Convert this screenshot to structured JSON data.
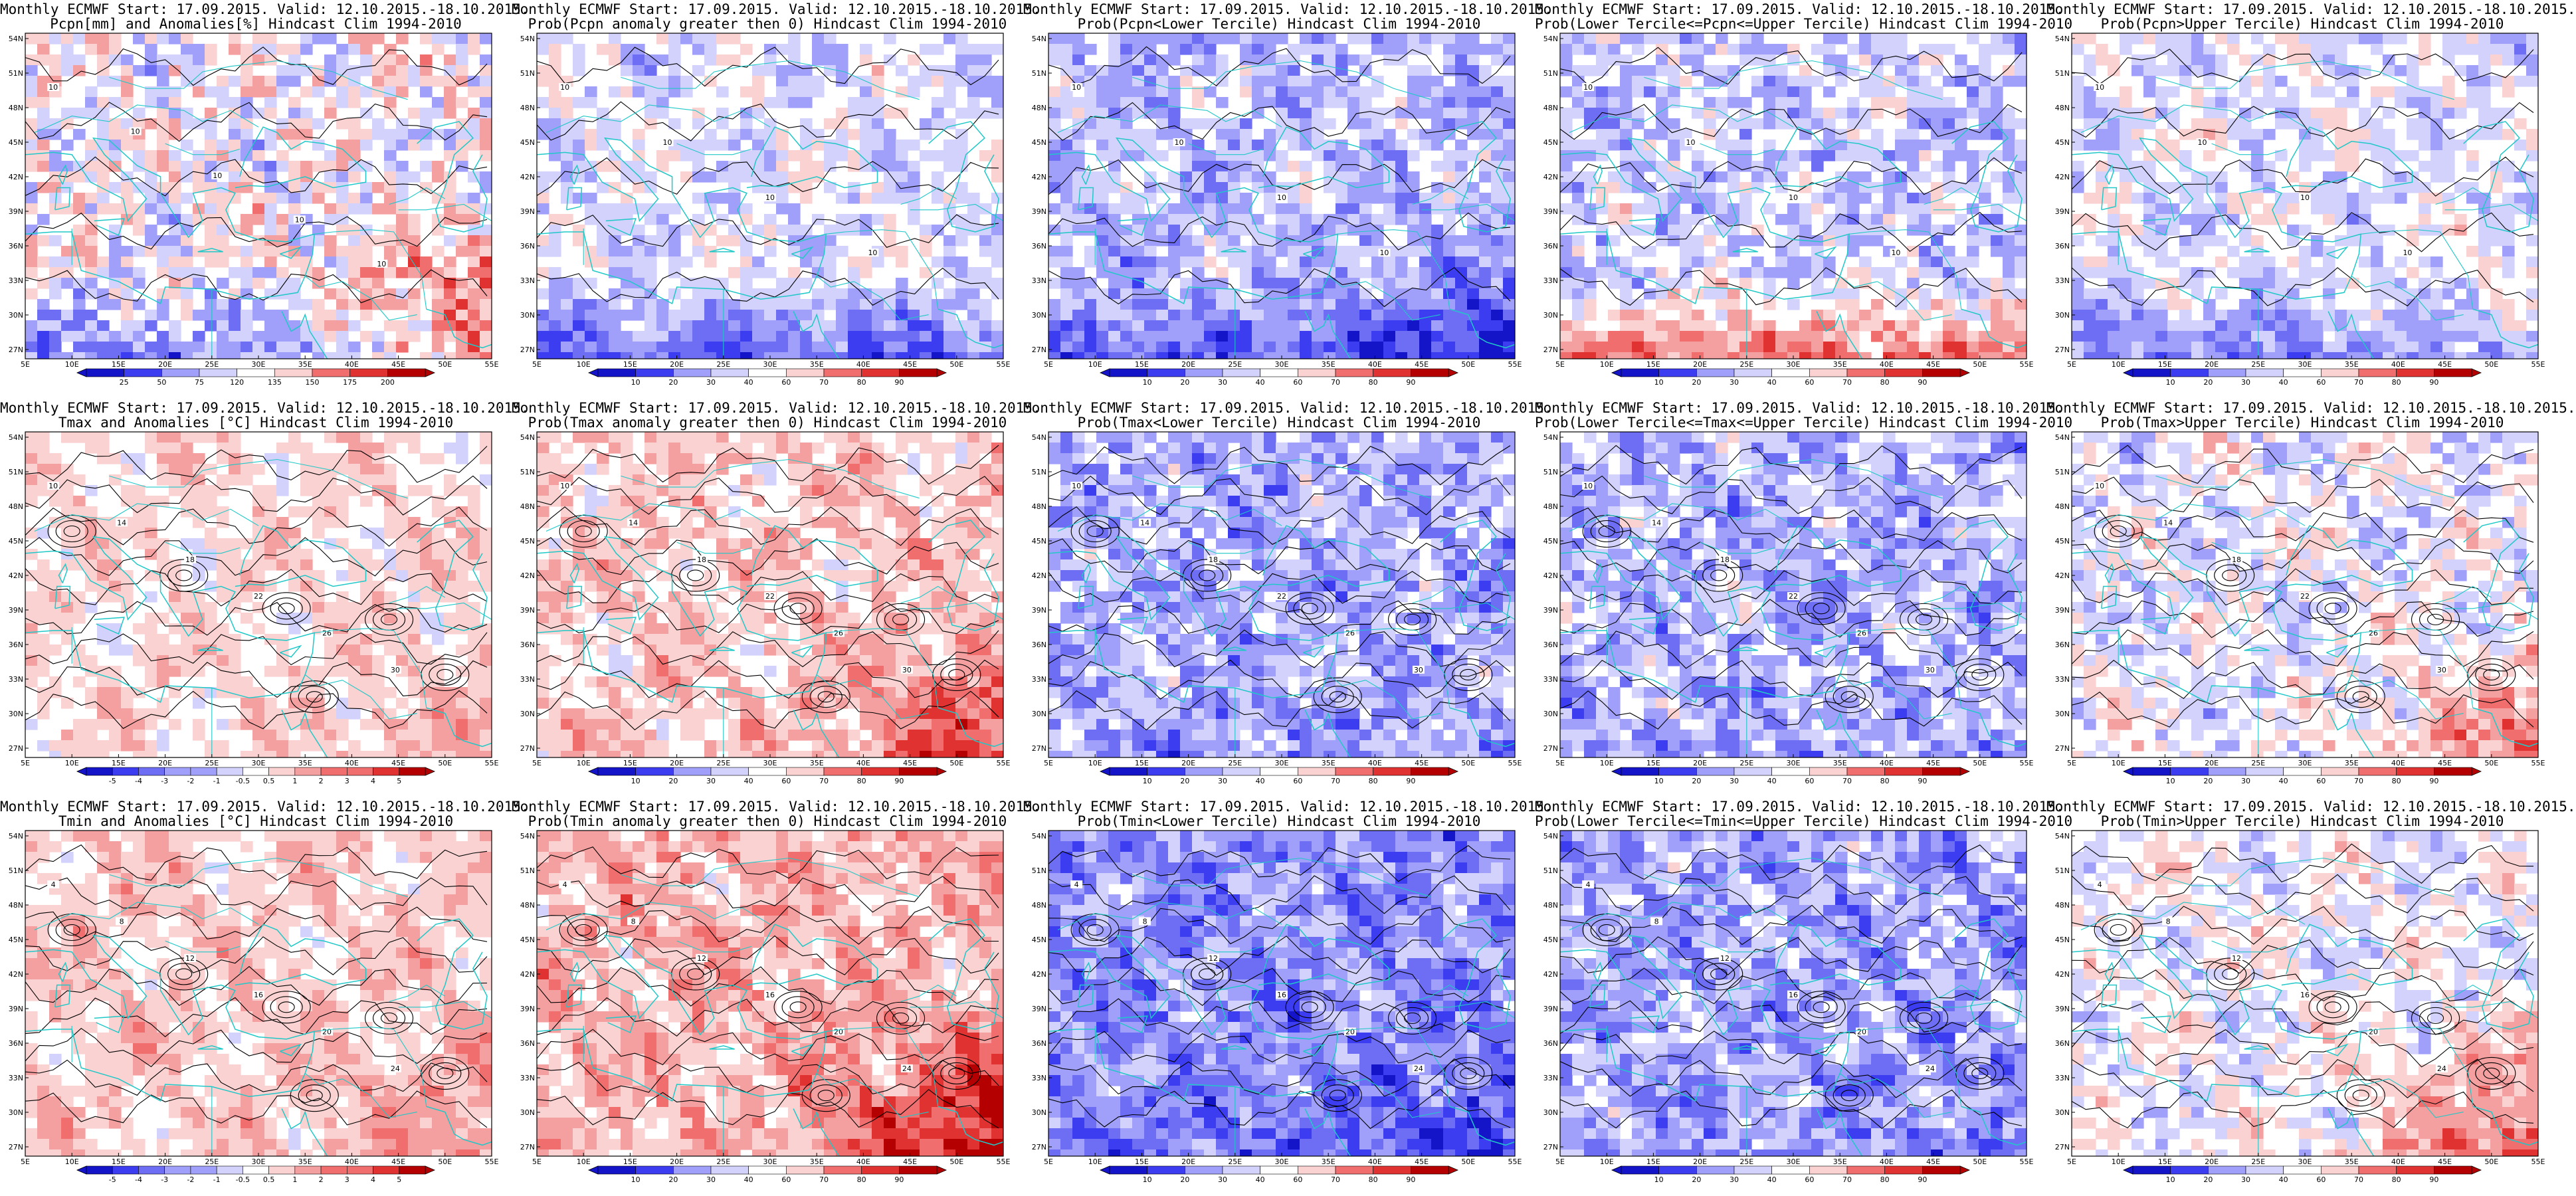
{
  "colors": {
    "dark_blue": "#1414c8",
    "blue": "#3c3cf0",
    "mid_blue": "#6e6ef5",
    "light_blue": "#a0a0fa",
    "pale_blue": "#d2d2fc",
    "white": "#ffffff",
    "pale_red": "#fad2d2",
    "light_red": "#f5a0a0",
    "mid_red": "#f06e6e",
    "red": "#e13232",
    "dark_red": "#b40000",
    "coast": "#20c8c8",
    "contour": "#000000"
  },
  "axes": {
    "lon_ticks": [
      "5E",
      "10E",
      "15E",
      "20E",
      "25E",
      "30E",
      "35E",
      "40E",
      "45E",
      "50E",
      "55E"
    ],
    "lat_ticks": [
      "54N",
      "51N",
      "48N",
      "45N",
      "42N",
      "39N",
      "36N",
      "33N",
      "30N",
      "27N"
    ]
  },
  "colorbars": {
    "anom_pcpn": {
      "labels": [
        "25",
        "50",
        "75",
        "120",
        "135",
        "150",
        "175",
        "200"
      ],
      "type": "diverging"
    },
    "prob": {
      "labels": [
        "10",
        "20",
        "30",
        "40",
        "60",
        "70",
        "80",
        "90"
      ],
      "type": "diverging"
    },
    "anom_temp": {
      "labels": [
        "-5",
        "-4",
        "-3",
        "-2",
        "-1",
        "-0.5",
        "0.5",
        "1",
        "2",
        "3",
        "4",
        "5"
      ],
      "type": "diverging"
    }
  },
  "panels": [
    {
      "id": "p-0-0",
      "title1": "Monthly ECMWF Start: 17.09.2015. Valid: 12.10.2015.-18.10.2015.",
      "title2": "Pcpn[mm] and Anomalies[%] Hindcast Clim 1994-2010",
      "colorbar": "anom_pcpn",
      "bias": 0.0,
      "noise": 1.0,
      "seed": 1,
      "warmSE": 1.4,
      "coolS": -1.4,
      "contours": "sparse",
      "contourLabels": [
        "10",
        "10",
        "10",
        "10",
        "10"
      ]
    },
    {
      "id": "p-0-1",
      "title1": "Monthly ECMWF Start: 17.09.2015. Valid: 12.10.2015.-18.10.2015.",
      "title2": "Prob(Pcpn anomaly greater then 0) Hindcast Clim 1994-2010",
      "colorbar": "prob",
      "bias": -0.3,
      "noise": 0.6,
      "seed": 2,
      "warmSE": 0.0,
      "coolS": -1.6,
      "contours": "sparse",
      "contourLabels": [
        "10",
        "10",
        "10",
        "10"
      ]
    },
    {
      "id": "p-0-2",
      "title1": "Monthly ECMWF Start: 17.09.2015. Valid: 12.10.2015.-18.10.2015.",
      "title2": "Prob(Pcpn<Lower Tercile) Hindcast Clim 1994-2010",
      "colorbar": "prob",
      "bias": -0.8,
      "noise": 0.7,
      "seed": 3,
      "warmSE": -0.6,
      "coolS": -1.2,
      "contours": "sparse",
      "contourLabels": [
        "10",
        "10",
        "10",
        "10"
      ]
    },
    {
      "id": "p-0-3",
      "title1": "Monthly ECMWF Start: 17.09.2015. Valid: 12.10.2015.-18.10.2015.",
      "title2": "Prob(Lower Tercile<=Pcpn<=Upper Tercile) Hindcast Clim 1994-2010",
      "colorbar": "prob",
      "bias": -0.6,
      "noise": 0.8,
      "seed": 4,
      "warmSE": 0.0,
      "coolS": 2.2,
      "contours": "sparse",
      "contourLabels": [
        "10",
        "10",
        "10",
        "10"
      ]
    },
    {
      "id": "p-0-4",
      "title1": "Monthly ECMWF Start: 17.09.2015. Valid: 12.10.2015.-18.10.2015.",
      "title2": "Prob(Pcpn>Upper Tercile) Hindcast Clim 1994-2010",
      "colorbar": "prob",
      "bias": -0.3,
      "noise": 0.6,
      "seed": 5,
      "warmSE": 0.3,
      "coolS": -1.2,
      "contours": "sparse",
      "contourLabels": [
        "10",
        "10",
        "10",
        "10"
      ]
    },
    {
      "id": "p-1-0",
      "title1": "Monthly ECMWF Start: 17.09.2015. Valid: 12.10.2015.-18.10.2015.",
      "title2": "Tmax and Anomalies [°C] Hindcast Clim 1994-2010",
      "colorbar": "anom_temp",
      "bias": 0.4,
      "noise": 0.4,
      "seed": 6,
      "warmSE": 0.3,
      "coolS": 0.0,
      "contours": "dense",
      "contourLabels": [
        "10",
        "14",
        "18",
        "22",
        "26",
        "30"
      ]
    },
    {
      "id": "p-1-1",
      "title1": "Monthly ECMWF Start: 17.09.2015. Valid: 12.10.2015.-18.10.2015.",
      "title2": "Prob(Tmax anomaly greater then 0) Hindcast Clim 1994-2010",
      "colorbar": "prob",
      "bias": 0.6,
      "noise": 0.6,
      "seed": 7,
      "warmSE": 0.9,
      "coolS": 0.0,
      "contours": "dense",
      "contourLabels": [
        "10",
        "14",
        "18",
        "22",
        "26",
        "30"
      ]
    },
    {
      "id": "p-1-2",
      "title1": "Monthly ECMWF Start: 17.09.2015. Valid: 12.10.2015.-18.10.2015.",
      "title2": "Prob(Tmax<Lower Tercile) Hindcast Clim 1994-2010",
      "colorbar": "prob",
      "bias": -1.0,
      "noise": 0.8,
      "seed": 8,
      "warmSE": 0.0,
      "coolS": -0.3,
      "contours": "dense",
      "contourLabels": [
        "10",
        "14",
        "18",
        "22",
        "26",
        "30"
      ]
    },
    {
      "id": "p-1-3",
      "title1": "Monthly ECMWF Start: 17.09.2015. Valid: 12.10.2015.-18.10.2015.",
      "title2": "Prob(Lower Tercile<=Tmax<=Upper Tercile) Hindcast Clim 1994-2010",
      "colorbar": "prob",
      "bias": -0.9,
      "noise": 0.8,
      "seed": 9,
      "warmSE": 0.0,
      "coolS": -0.2,
      "contours": "dense",
      "contourLabels": [
        "10",
        "14",
        "18",
        "22",
        "26",
        "30"
      ]
    },
    {
      "id": "p-1-4",
      "title1": "Monthly ECMWF Start: 17.09.2015. Valid: 12.10.2015.-18.10.2015.",
      "title2": "Prob(Tmax>Upper Tercile) Hindcast Clim 1994-2010",
      "colorbar": "prob",
      "bias": -0.2,
      "noise": 0.7,
      "seed": 10,
      "warmSE": 0.9,
      "coolS": 0.0,
      "contours": "dense",
      "contourLabels": [
        "10",
        "14",
        "18",
        "22",
        "26",
        "30"
      ]
    },
    {
      "id": "p-2-0",
      "title1": "Monthly ECMWF Start: 17.09.2015. Valid: 12.10.2015.-18.10.2015.",
      "title2": "Tmin and Anomalies [°C] Hindcast Clim 1994-2010",
      "colorbar": "anom_temp",
      "bias": 0.6,
      "noise": 0.4,
      "seed": 11,
      "warmSE": 0.4,
      "coolS": 0.0,
      "contours": "dense",
      "contourLabels": [
        "4",
        "8",
        "12",
        "16",
        "20",
        "24"
      ]
    },
    {
      "id": "p-2-1",
      "title1": "Monthly ECMWF Start: 17.09.2015. Valid: 12.10.2015.-18.10.2015.",
      "title2": "Prob(Tmin anomaly greater then 0) Hindcast Clim 1994-2010",
      "colorbar": "prob",
      "bias": 0.9,
      "noise": 0.6,
      "seed": 12,
      "warmSE": 1.2,
      "coolS": 0.0,
      "contours": "dense",
      "contourLabels": [
        "4",
        "8",
        "12",
        "16",
        "20",
        "24"
      ]
    },
    {
      "id": "p-2-2",
      "title1": "Monthly ECMWF Start: 17.09.2015. Valid: 12.10.2015.-18.10.2015.",
      "title2": "Prob(Tmin<Lower Tercile) Hindcast Clim 1994-2010",
      "colorbar": "prob",
      "bias": -1.4,
      "noise": 0.7,
      "seed": 13,
      "warmSE": -0.4,
      "coolS": -0.4,
      "contours": "dense",
      "contourLabels": [
        "4",
        "8",
        "12",
        "16",
        "20",
        "24"
      ]
    },
    {
      "id": "p-2-3",
      "title1": "Monthly ECMWF Start: 17.09.2015. Valid: 12.10.2015.-18.10.2015.",
      "title2": "Prob(Lower Tercile<=Tmin<=Upper Tercile) Hindcast Clim 1994-2010",
      "colorbar": "prob",
      "bias": -1.1,
      "noise": 0.8,
      "seed": 14,
      "warmSE": -0.2,
      "coolS": -0.2,
      "contours": "dense",
      "contourLabels": [
        "4",
        "8",
        "12",
        "16",
        "20",
        "24"
      ]
    },
    {
      "id": "p-2-4",
      "title1": "Monthly ECMWF Start: 17.09.2015. Valid: 12.10.2015.-18.10.2015.",
      "title2": "Prob(Tmin>Upper Tercile) Hindcast Clim 1994-2010",
      "colorbar": "prob",
      "bias": -0.1,
      "noise": 0.6,
      "seed": 15,
      "warmSE": 1.1,
      "coolS": 0.0,
      "contours": "dense",
      "contourLabels": [
        "4",
        "8",
        "12",
        "16",
        "20",
        "24"
      ]
    }
  ]
}
